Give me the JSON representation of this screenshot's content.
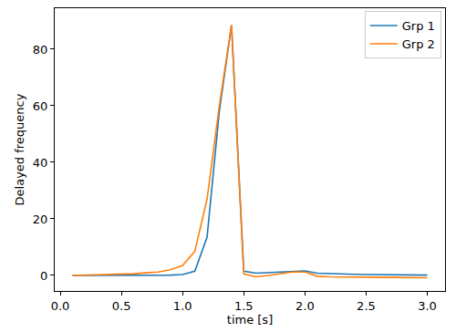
{
  "chart_data": {
    "type": "line",
    "x_label": "time [s]",
    "y_label": "Delayed frequency",
    "x": [
      0.1,
      0.2,
      0.3,
      0.4,
      0.5,
      0.6,
      0.7,
      0.8,
      0.9,
      1.0,
      1.1,
      1.2,
      1.3,
      1.4,
      1.5,
      1.6,
      1.7,
      1.8,
      1.9,
      2.0,
      2.1,
      2.2,
      2.3,
      2.4,
      2.5,
      2.6,
      2.7,
      2.8,
      2.9,
      3.0
    ],
    "series": [
      {
        "name": "Grp 1",
        "color": "#1f77b4",
        "values": [
          0,
          0,
          0,
          0,
          0,
          0,
          0,
          0,
          0.1,
          0.3,
          1.5,
          13.5,
          58,
          88.5,
          1.5,
          0.8,
          1.0,
          1.3,
          1.6,
          1.6,
          0.8,
          0.6,
          0.5,
          0.4,
          0.3,
          0.3,
          0.2,
          0.2,
          0.2,
          0.1
        ]
      },
      {
        "name": "Grp 2",
        "color": "#ff7f0e",
        "values": [
          0,
          0.1,
          0.2,
          0.3,
          0.4,
          0.6,
          0.9,
          1.2,
          2.0,
          3.5,
          8.5,
          27,
          60,
          88.5,
          0.5,
          -0.5,
          0,
          0.5,
          1.2,
          1.2,
          -0.3,
          -0.5,
          -0.6,
          -0.6,
          -0.7,
          -0.7,
          -0.7,
          -0.8,
          -0.8,
          -0.8
        ]
      }
    ],
    "xlim": [
      -0.045,
      3.145
    ],
    "xticks": [
      {
        "value": 0,
        "label": "0.0"
      },
      0.5,
      {
        "value": 1,
        "label": "1.0"
      },
      1.5,
      {
        "value": 2,
        "label": "2.0"
      },
      2.5,
      {
        "value": 3,
        "label": "3.0"
      }
    ],
    "ylim": [
      -5.5,
      94.5
    ],
    "yticks": [
      0,
      20,
      40,
      60,
      80
    ],
    "grid": false,
    "legend": "upper right"
  }
}
